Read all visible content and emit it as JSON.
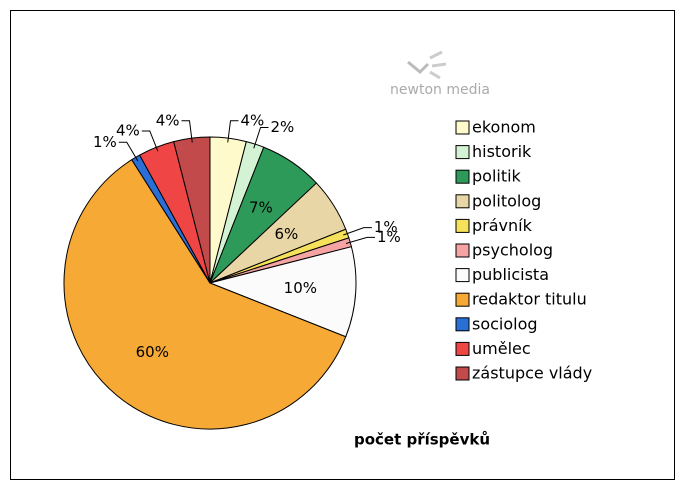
{
  "chart_data": {
    "type": "pie",
    "title": "počet příspěvků",
    "logo": "newton media",
    "categories": [
      "ekonom",
      "historik",
      "politik",
      "politolog",
      "právník",
      "psycholog",
      "publicista",
      "redaktor titulu",
      "sociolog",
      "umělec",
      "zástupce vlády"
    ],
    "values": [
      4,
      2,
      7,
      6,
      1,
      1,
      10,
      60,
      1,
      4,
      4
    ],
    "value_labels": [
      "4%",
      "2%",
      "7%",
      "6%",
      "1%",
      "1%",
      "10%",
      "60%",
      "1%",
      "4%",
      "4%"
    ],
    "colors": [
      "#fffacc",
      "#d4f3d4",
      "#2e9a5a",
      "#e9d6a6",
      "#f6e25a",
      "#f5a3a3",
      "#fbfbfb",
      "#f7a935",
      "#2a6fd6",
      "#f04545",
      "#c24a4a"
    ]
  }
}
